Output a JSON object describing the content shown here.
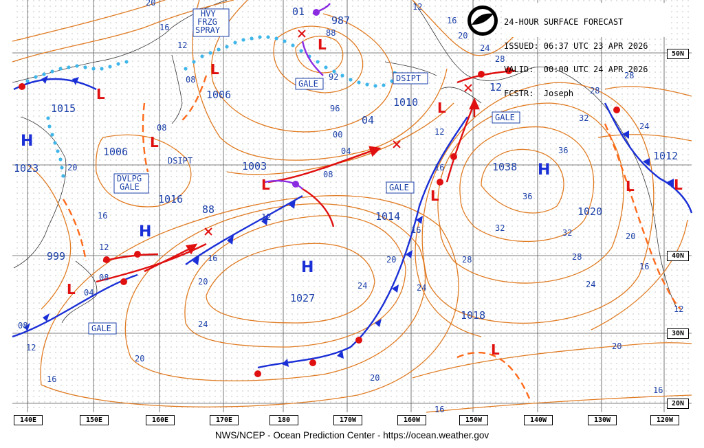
{
  "header": {
    "line1": "24-HOUR SURFACE FORECAST",
    "line2": "ISSUED: 06:37 UTC 23 APR 2026",
    "line3": "VALID:  00:00 UTC 24 APR 2026",
    "line4": "FCSTR:  Joseph"
  },
  "logo_text": "NOAA",
  "credit": "NWS/NCEP - Ocean Prediction Center - https://ocean.weather.gov",
  "lon_labels": [
    "140E",
    "150E",
    "160E",
    "170E",
    "180",
    "170W",
    "160W",
    "150W",
    "140W",
    "130W",
    "120W"
  ],
  "lat_labels": [
    "50N",
    "40N",
    "30N",
    "20N"
  ],
  "high_label": "H",
  "low_label": "L",
  "pressures": [
    "1015",
    "1023",
    "1006",
    "1006",
    "1016",
    "999",
    "1003",
    "1010",
    "1027",
    "1014",
    "1018",
    "1038",
    "1020",
    "1012",
    "987"
  ],
  "tags": [
    "HVY",
    "FRZG",
    "SPRAY",
    "GALE",
    "DVLPG",
    "DSIPT"
  ],
  "isobar_values": [
    "20",
    "16",
    "12",
    "08",
    "04",
    "00",
    "96",
    "92",
    "88",
    "24",
    "28",
    "32",
    "36",
    "01"
  ],
  "colors": {
    "cold": "#1a2fd6",
    "warm": "#e01010",
    "isobar": "#e07b22",
    "label": "#1a3fa8",
    "ice": "#3fb6ea",
    "occl": "#8a2be2"
  }
}
